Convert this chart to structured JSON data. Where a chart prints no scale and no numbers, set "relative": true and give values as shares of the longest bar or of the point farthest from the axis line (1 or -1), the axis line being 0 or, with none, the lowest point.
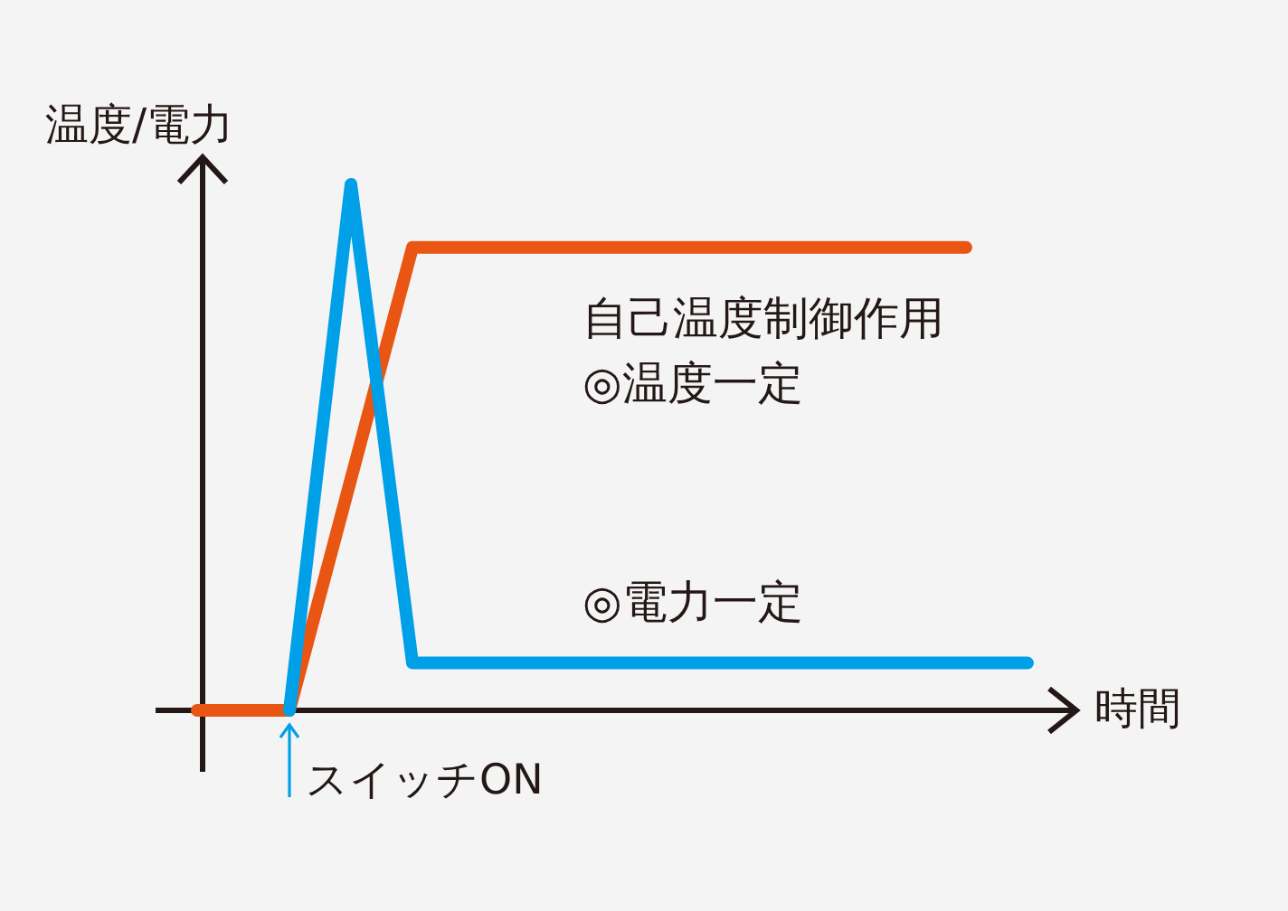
{
  "chart_data": {
    "type": "line",
    "relative": true,
    "ylabel": "温度/電力",
    "xlabel": "時間",
    "annotations": [
      "自己温度制御作用",
      "スイッチON"
    ],
    "categories": [
      null,
      null,
      null,
      null,
      null,
      null,
      null,
      null,
      null,
      null,
      null,
      null,
      null,
      null,
      null,
      null,
      null,
      null,
      null,
      null,
      null,
      null,
      null,
      null,
      null,
      null,
      null,
      null
    ],
    "series": [
      {
        "name": "◎温度一定",
        "color": "#e95513",
        "values": [
          0,
          0,
          0,
          0,
          0.22,
          0.44,
          0.66,
          0.88,
          0.88,
          0.88,
          0.88,
          0.88,
          0.88,
          0.88,
          0.88,
          0.88,
          0.88,
          0.88,
          0.88,
          0.88,
          0.88,
          0.88,
          0.88,
          0.88,
          0.88,
          0.88,
          null,
          null
        ]
      },
      {
        "name": "◎電力一定",
        "color": "#00a0e9",
        "values": [
          null,
          null,
          null,
          0,
          0.5,
          1,
          0.55,
          0.09,
          0.09,
          0.09,
          0.09,
          0.09,
          0.09,
          0.09,
          0.09,
          0.09,
          0.09,
          0.09,
          0.09,
          0.09,
          0.09,
          0.09,
          0.09,
          0.09,
          0.09,
          0.09,
          0.09,
          0.09
        ]
      }
    ]
  }
}
